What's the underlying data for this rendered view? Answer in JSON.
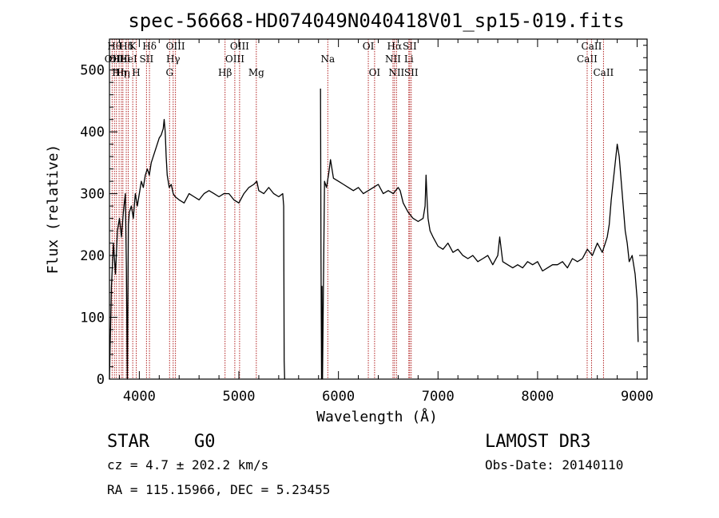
{
  "chart_data": {
    "type": "line",
    "title": "spec-56668-HD074049N040418V01_sp15-019.fits",
    "xlabel": "Wavelength (Å)",
    "ylabel": "Flux (relative)",
    "xlim": [
      3700,
      9100
    ],
    "ylim": [
      0,
      550
    ],
    "xticks": [
      4000,
      5000,
      6000,
      7000,
      8000,
      9000
    ],
    "yticks": [
      0,
      100,
      200,
      300,
      400,
      500
    ],
    "series": [
      {
        "x": [
          3700,
          3720,
          3740,
          3760,
          3780,
          3800,
          3820,
          3840,
          3860,
          3870,
          3880,
          3890,
          3900,
          3920,
          3940,
          3960,
          3980,
          4000,
          4020,
          4040,
          4060,
          4080,
          4100,
          4120,
          4140,
          4160,
          4180,
          4200,
          4220,
          4240,
          4250,
          4260,
          4270,
          4280,
          4300,
          4320,
          4340,
          4360,
          4400,
          4450,
          4500,
          4550,
          4600,
          4650,
          4700,
          4750,
          4800,
          4850,
          4900,
          4950,
          5000,
          5050,
          5100,
          5150,
          5180,
          5200,
          5250,
          5300,
          5350,
          5400,
          5440,
          5450,
          5455,
          5460
        ],
        "y": [
          0,
          150,
          220,
          170,
          240,
          260,
          230,
          270,
          300,
          180,
          0,
          250,
          270,
          280,
          260,
          300,
          280,
          300,
          320,
          310,
          330,
          340,
          330,
          350,
          360,
          370,
          380,
          390,
          395,
          405,
          420,
          400,
          360,
          330,
          310,
          315,
          300,
          295,
          290,
          285,
          300,
          295,
          290,
          300,
          305,
          300,
          295,
          300,
          300,
          290,
          285,
          300,
          310,
          315,
          320,
          305,
          300,
          310,
          300,
          295,
          300,
          280,
          30,
          0
        ]
      },
      {
        "x": [
          5820,
          5825,
          5830,
          5835,
          5840,
          5860,
          5880,
          5900,
          5920,
          5950,
          6000,
          6050,
          6100,
          6150,
          6200,
          6250,
          6300,
          6350,
          6400,
          6450,
          6500,
          6550,
          6600,
          6620,
          6650,
          6700,
          6750,
          6800,
          6850,
          6870,
          6880,
          6890,
          6900,
          6920,
          6950,
          7000,
          7050,
          7100,
          7150,
          7200,
          7250,
          7300,
          7350,
          7400,
          7450,
          7500,
          7550,
          7600,
          7620,
          7650,
          7700,
          7750,
          7800,
          7850,
          7900,
          7950,
          8000,
          8050,
          8100,
          8150,
          8200,
          8250,
          8300,
          8350,
          8400,
          8450,
          8500,
          8550,
          8600,
          8650,
          8680,
          8700,
          8720,
          8740,
          8760,
          8780,
          8800,
          8820,
          8840,
          8860,
          8880,
          8900,
          8920,
          8950,
          8980,
          9000,
          9010
        ],
        "y": [
          470,
          200,
          0,
          150,
          0,
          320,
          310,
          330,
          355,
          325,
          320,
          315,
          310,
          305,
          310,
          300,
          305,
          310,
          315,
          300,
          305,
          300,
          310,
          305,
          285,
          270,
          260,
          255,
          260,
          280,
          330,
          290,
          260,
          240,
          230,
          215,
          210,
          220,
          205,
          210,
          200,
          195,
          200,
          190,
          195,
          200,
          185,
          200,
          230,
          190,
          185,
          180,
          185,
          180,
          190,
          185,
          190,
          175,
          180,
          185,
          185,
          190,
          180,
          195,
          190,
          195,
          210,
          200,
          220,
          205,
          220,
          230,
          250,
          290,
          320,
          350,
          380,
          360,
          320,
          280,
          240,
          220,
          190,
          200,
          170,
          130,
          60
        ]
      }
    ],
    "lines": [
      {
        "wave": 3727,
        "label": "OII",
        "row": 2
      },
      {
        "wave": 3750,
        "label": "Hθ",
        "row": 1
      },
      {
        "wave": 3770,
        "label": "OII",
        "row": 2
      },
      {
        "wave": 3797,
        "label": "Hη",
        "row": 3
      },
      {
        "wave": 3820,
        "label": "HeI",
        "row": 2
      },
      {
        "wave": 3835,
        "label": "Hη",
        "row": 3
      },
      {
        "wave": 3869,
        "label": "Hδ",
        "row": 1
      },
      {
        "wave": 3889,
        "label": "HeI",
        "row": 2
      },
      {
        "wave": 3934,
        "label": "K",
        "row": 1
      },
      {
        "wave": 3969,
        "label": "H",
        "row": 3
      },
      {
        "wave": 4072,
        "label": "SII",
        "row": 2
      },
      {
        "wave": 4102,
        "label": "Hδ",
        "row": 1
      },
      {
        "wave": 4304,
        "label": "G",
        "row": 3
      },
      {
        "wave": 4340,
        "label": "Hγ",
        "row": 2
      },
      {
        "wave": 4363,
        "label": "OIII",
        "row": 1
      },
      {
        "wave": 4861,
        "label": "Hβ",
        "row": 3
      },
      {
        "wave": 4959,
        "label": "OIII",
        "row": 2
      },
      {
        "wave": 5007,
        "label": "OIII",
        "row": 1
      },
      {
        "wave": 5175,
        "label": "Mg",
        "row": 3
      },
      {
        "wave": 5893,
        "label": "Na",
        "row": 2
      },
      {
        "wave": 6300,
        "label": "OI",
        "row": 1
      },
      {
        "wave": 6363,
        "label": "OI",
        "row": 3
      },
      {
        "wave": 6548,
        "label": "NII",
        "row": 2
      },
      {
        "wave": 6563,
        "label": "Hα",
        "row": 1
      },
      {
        "wave": 6583,
        "label": "NII",
        "row": 3
      },
      {
        "wave": 6707,
        "label": "Li",
        "row": 2
      },
      {
        "wave": 6716,
        "label": "SII",
        "row": 1
      },
      {
        "wave": 6731,
        "label": "SII",
        "row": 3
      },
      {
        "wave": 8498,
        "label": "CaII",
        "row": 2
      },
      {
        "wave": 8542,
        "label": "CaII",
        "row": 1
      },
      {
        "wave": 8662,
        "label": "CaII",
        "row": 3
      }
    ]
  },
  "info": {
    "object_class": "STAR",
    "subclass": "G0",
    "survey": "LAMOST DR3",
    "cz": "cz = 4.7 ± 202.2 km/s",
    "obs_date": "Obs-Date: 20140110",
    "coords": "RA = 115.15966, DEC =   5.23455"
  }
}
